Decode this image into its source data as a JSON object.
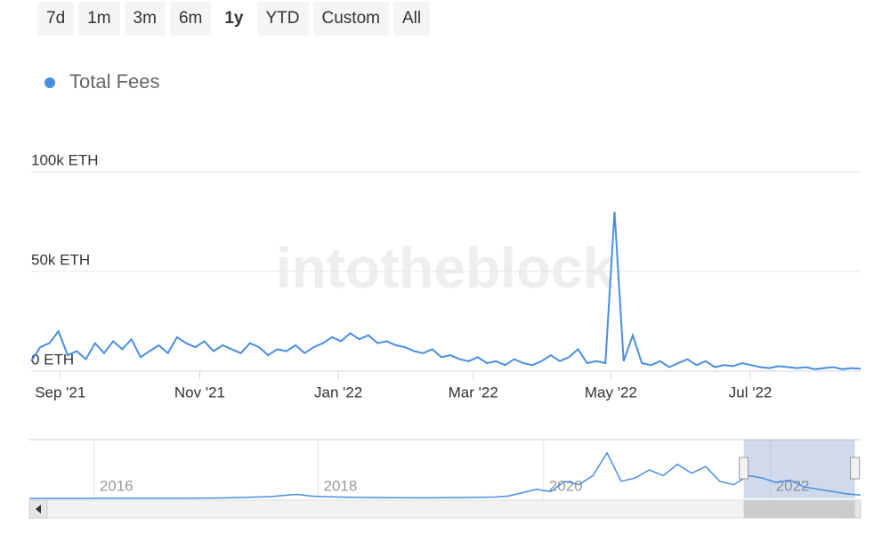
{
  "range_buttons": [
    "7d",
    "1m",
    "3m",
    "6m",
    "1y",
    "YTD",
    "Custom",
    "All"
  ],
  "selected_range": "1y",
  "watermark": "intotheblock",
  "chart_data": {
    "type": "line",
    "series": [
      {
        "name": "Total Fees",
        "color": "#4a8ee0",
        "values": [
          5000,
          12000,
          14000,
          20000,
          8000,
          10000,
          6000,
          14000,
          9000,
          15000,
          11000,
          16000,
          7000,
          10000,
          13000,
          9000,
          17000,
          14000,
          12000,
          15000,
          10000,
          13000,
          11000,
          9000,
          14000,
          12000,
          8000,
          11000,
          10000,
          13000,
          9000,
          12000,
          14000,
          17000,
          15000,
          19000,
          16000,
          18000,
          14000,
          15000,
          13000,
          12000,
          10000,
          9000,
          11000,
          7000,
          8000,
          6000,
          5000,
          7000,
          4000,
          5000,
          3000,
          6000,
          4000,
          3000,
          5000,
          8000,
          5000,
          7000,
          11000,
          4000,
          5000,
          4000,
          80000,
          5000,
          18000,
          4000,
          3000,
          5000,
          2000,
          4000,
          6000,
          3000,
          5000,
          2000,
          3000,
          2500,
          4000,
          3000,
          2000,
          1500,
          2500,
          2000,
          1500,
          2000,
          1000,
          1500,
          2000,
          1000,
          1500,
          1200
        ]
      }
    ],
    "xlim": [
      0,
      91
    ],
    "xticks": [
      {
        "value": 3.2,
        "label": "Sep '21"
      },
      {
        "value": 18.5,
        "label": "Nov '21"
      },
      {
        "value": 33.7,
        "label": "Jan '22"
      },
      {
        "value": 48.5,
        "label": "Mar '22"
      },
      {
        "value": 63.6,
        "label": "May '22"
      },
      {
        "value": 78.9,
        "label": "Jul '22"
      }
    ],
    "ylim": [
      0,
      100000
    ],
    "yticks": [
      {
        "value": 0,
        "label": "0 ETH"
      },
      {
        "value": 50000,
        "label": "50k ETH"
      },
      {
        "value": 100000,
        "label": "100k ETH"
      }
    ],
    "grid": true,
    "navigator": {
      "values": [
        20,
        20,
        30,
        30,
        30,
        40,
        40,
        50,
        50,
        60,
        80,
        100,
        150,
        300,
        500,
        800,
        1200,
        1500,
        2500,
        3500,
        2000,
        1500,
        1200,
        1000,
        800,
        700,
        600,
        600,
        500,
        600,
        700,
        800,
        900,
        1200,
        2000,
        5000,
        8000,
        6000,
        15000,
        12000,
        20000,
        40000,
        15000,
        18000,
        25000,
        20000,
        30000,
        22000,
        28000,
        15000,
        12000,
        20000,
        18000,
        14000,
        16000,
        10000,
        8000,
        6000,
        4000,
        3000
      ],
      "xlim": [
        0,
        59
      ],
      "ylim": [
        0,
        50000
      ],
      "xticks": [
        {
          "value": 4.6,
          "label": "2016"
        },
        {
          "value": 20.5,
          "label": "2018"
        },
        {
          "value": 36.5,
          "label": "2020"
        },
        {
          "value": 52.6,
          "label": "2022"
        }
      ],
      "selection": [
        50.7,
        58.6
      ]
    }
  }
}
